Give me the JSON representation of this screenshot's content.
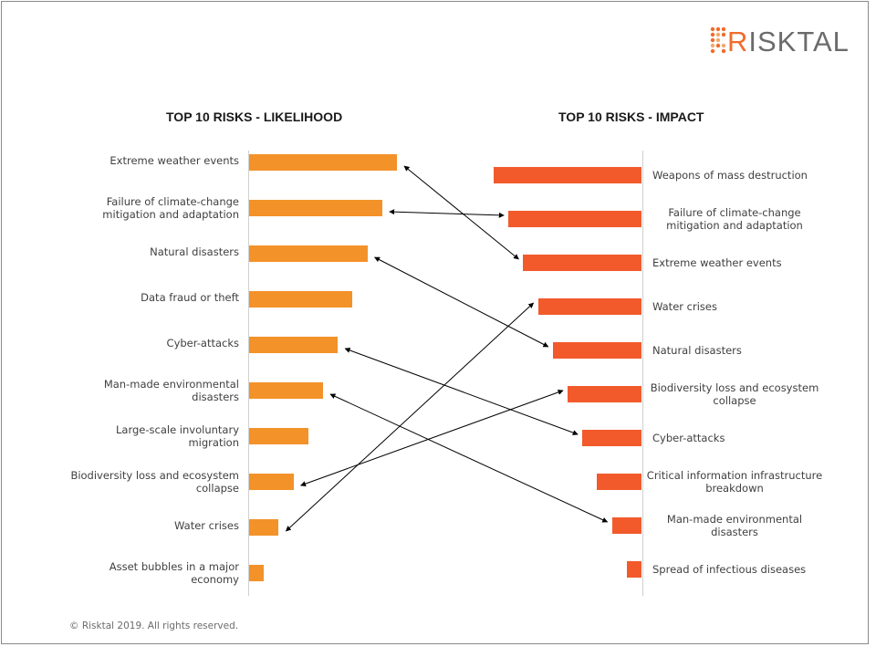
{
  "logo": {
    "initial": "R",
    "rest": "ISKTAL"
  },
  "copyright": "© Risktal 2019. All rights reserved.",
  "colors": {
    "likelihood_bar": "#f39229",
    "impact_bar": "#f25a2c",
    "arrow": "#000000"
  },
  "chart_data": [
    {
      "type": "bar",
      "title": "TOP 10 RISKS - LIKELIHOOD",
      "orientation": "horizontal",
      "categories": [
        "Extreme weather events",
        "Failure of climate-change mitigation and adaptation",
        "Natural disasters",
        "Data fraud or theft",
        "Cyber-attacks",
        "Man-made environmental disasters",
        "Large-scale involuntary migration",
        "Biodiversity loss and ecosystem collapse",
        "Water crises",
        "Asset bubbles in a major economy"
      ],
      "labels": [
        [
          "Extreme weather events"
        ],
        [
          "Failure of climate-change",
          "mitigation and adaptation"
        ],
        [
          "Natural disasters"
        ],
        [
          "Data fraud or theft"
        ],
        [
          "Cyber-attacks"
        ],
        [
          "Man-made environmental",
          "disasters"
        ],
        [
          "Large-scale involuntary",
          "migration"
        ],
        [
          "Biodiversity loss and ecosystem",
          "collapse"
        ],
        [
          "Water crises"
        ],
        [
          "Asset bubbles in a major",
          "economy"
        ]
      ],
      "values": [
        10,
        9,
        8,
        7,
        6,
        5,
        4,
        3,
        2,
        1
      ],
      "value_note": "relative rank magnitude; bars decrease by equal steps"
    },
    {
      "type": "bar",
      "title": "TOP 10 RISKS - IMPACT",
      "orientation": "horizontal-reversed",
      "categories": [
        "Weapons of mass destruction",
        "Failure of climate-change mitigation and adaptation",
        "Extreme weather events",
        "Water crises",
        "Natural disasters",
        "Biodiversity loss and ecosystem collapse",
        "Cyber-attacks",
        "Critical information infrastructure breakdown",
        "Man-made environmental disasters",
        "Spread of infectious diseases"
      ],
      "labels": [
        [
          "Weapons of mass destruction"
        ],
        [
          "Failure of climate-change",
          "mitigation and adaptation"
        ],
        [
          "Extreme weather events"
        ],
        [
          "Water crises"
        ],
        [
          "Natural disasters"
        ],
        [
          "Biodiversity loss and ecosystem",
          "collapse"
        ],
        [
          "Cyber-attacks"
        ],
        [
          "Critical information infrastructure",
          "breakdown"
        ],
        [
          "Man-made environmental",
          "disasters"
        ],
        [
          "Spread of infectious diseases"
        ]
      ],
      "values": [
        10,
        9,
        8,
        7,
        6,
        5,
        4,
        3,
        2,
        1
      ]
    }
  ],
  "links": [
    {
      "from": "Extreme weather events",
      "left_index": 0,
      "right_index": 2
    },
    {
      "from": "Failure of climate-change mitigation and adaptation",
      "left_index": 1,
      "right_index": 1
    },
    {
      "from": "Natural disasters",
      "left_index": 2,
      "right_index": 4
    },
    {
      "from": "Cyber-attacks",
      "left_index": 4,
      "right_index": 6
    },
    {
      "from": "Man-made environmental disasters",
      "left_index": 5,
      "right_index": 8
    },
    {
      "from": "Biodiversity loss and ecosystem collapse",
      "left_index": 7,
      "right_index": 5
    },
    {
      "from": "Water crises",
      "left_index": 8,
      "right_index": 3
    }
  ]
}
